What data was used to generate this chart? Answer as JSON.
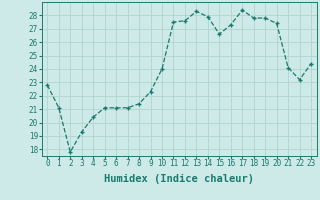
{
  "x": [
    0,
    1,
    2,
    3,
    4,
    5,
    6,
    7,
    8,
    9,
    10,
    11,
    12,
    13,
    14,
    15,
    16,
    17,
    18,
    19,
    20,
    21,
    22,
    23
  ],
  "y": [
    22.8,
    21.1,
    17.8,
    19.3,
    20.4,
    21.1,
    21.1,
    21.1,
    21.4,
    22.3,
    24.0,
    27.5,
    27.6,
    28.3,
    27.9,
    26.6,
    27.3,
    28.4,
    27.8,
    27.8,
    27.4,
    24.1,
    23.2,
    24.4
  ],
  "line_color": "#1a7a6e",
  "bg_color": "#ceeae8",
  "grid_color": "#b0d4d0",
  "xlabel": "Humidex (Indice chaleur)",
  "ylim": [
    17.5,
    29.0
  ],
  "xlim": [
    -0.5,
    23.5
  ],
  "yticks": [
    18,
    19,
    20,
    21,
    22,
    23,
    24,
    25,
    26,
    27,
    28
  ],
  "xticks": [
    0,
    1,
    2,
    3,
    4,
    5,
    6,
    7,
    8,
    9,
    10,
    11,
    12,
    13,
    14,
    15,
    16,
    17,
    18,
    19,
    20,
    21,
    22,
    23
  ],
  "tick_label_fontsize": 5.5,
  "xlabel_fontsize": 7.5
}
